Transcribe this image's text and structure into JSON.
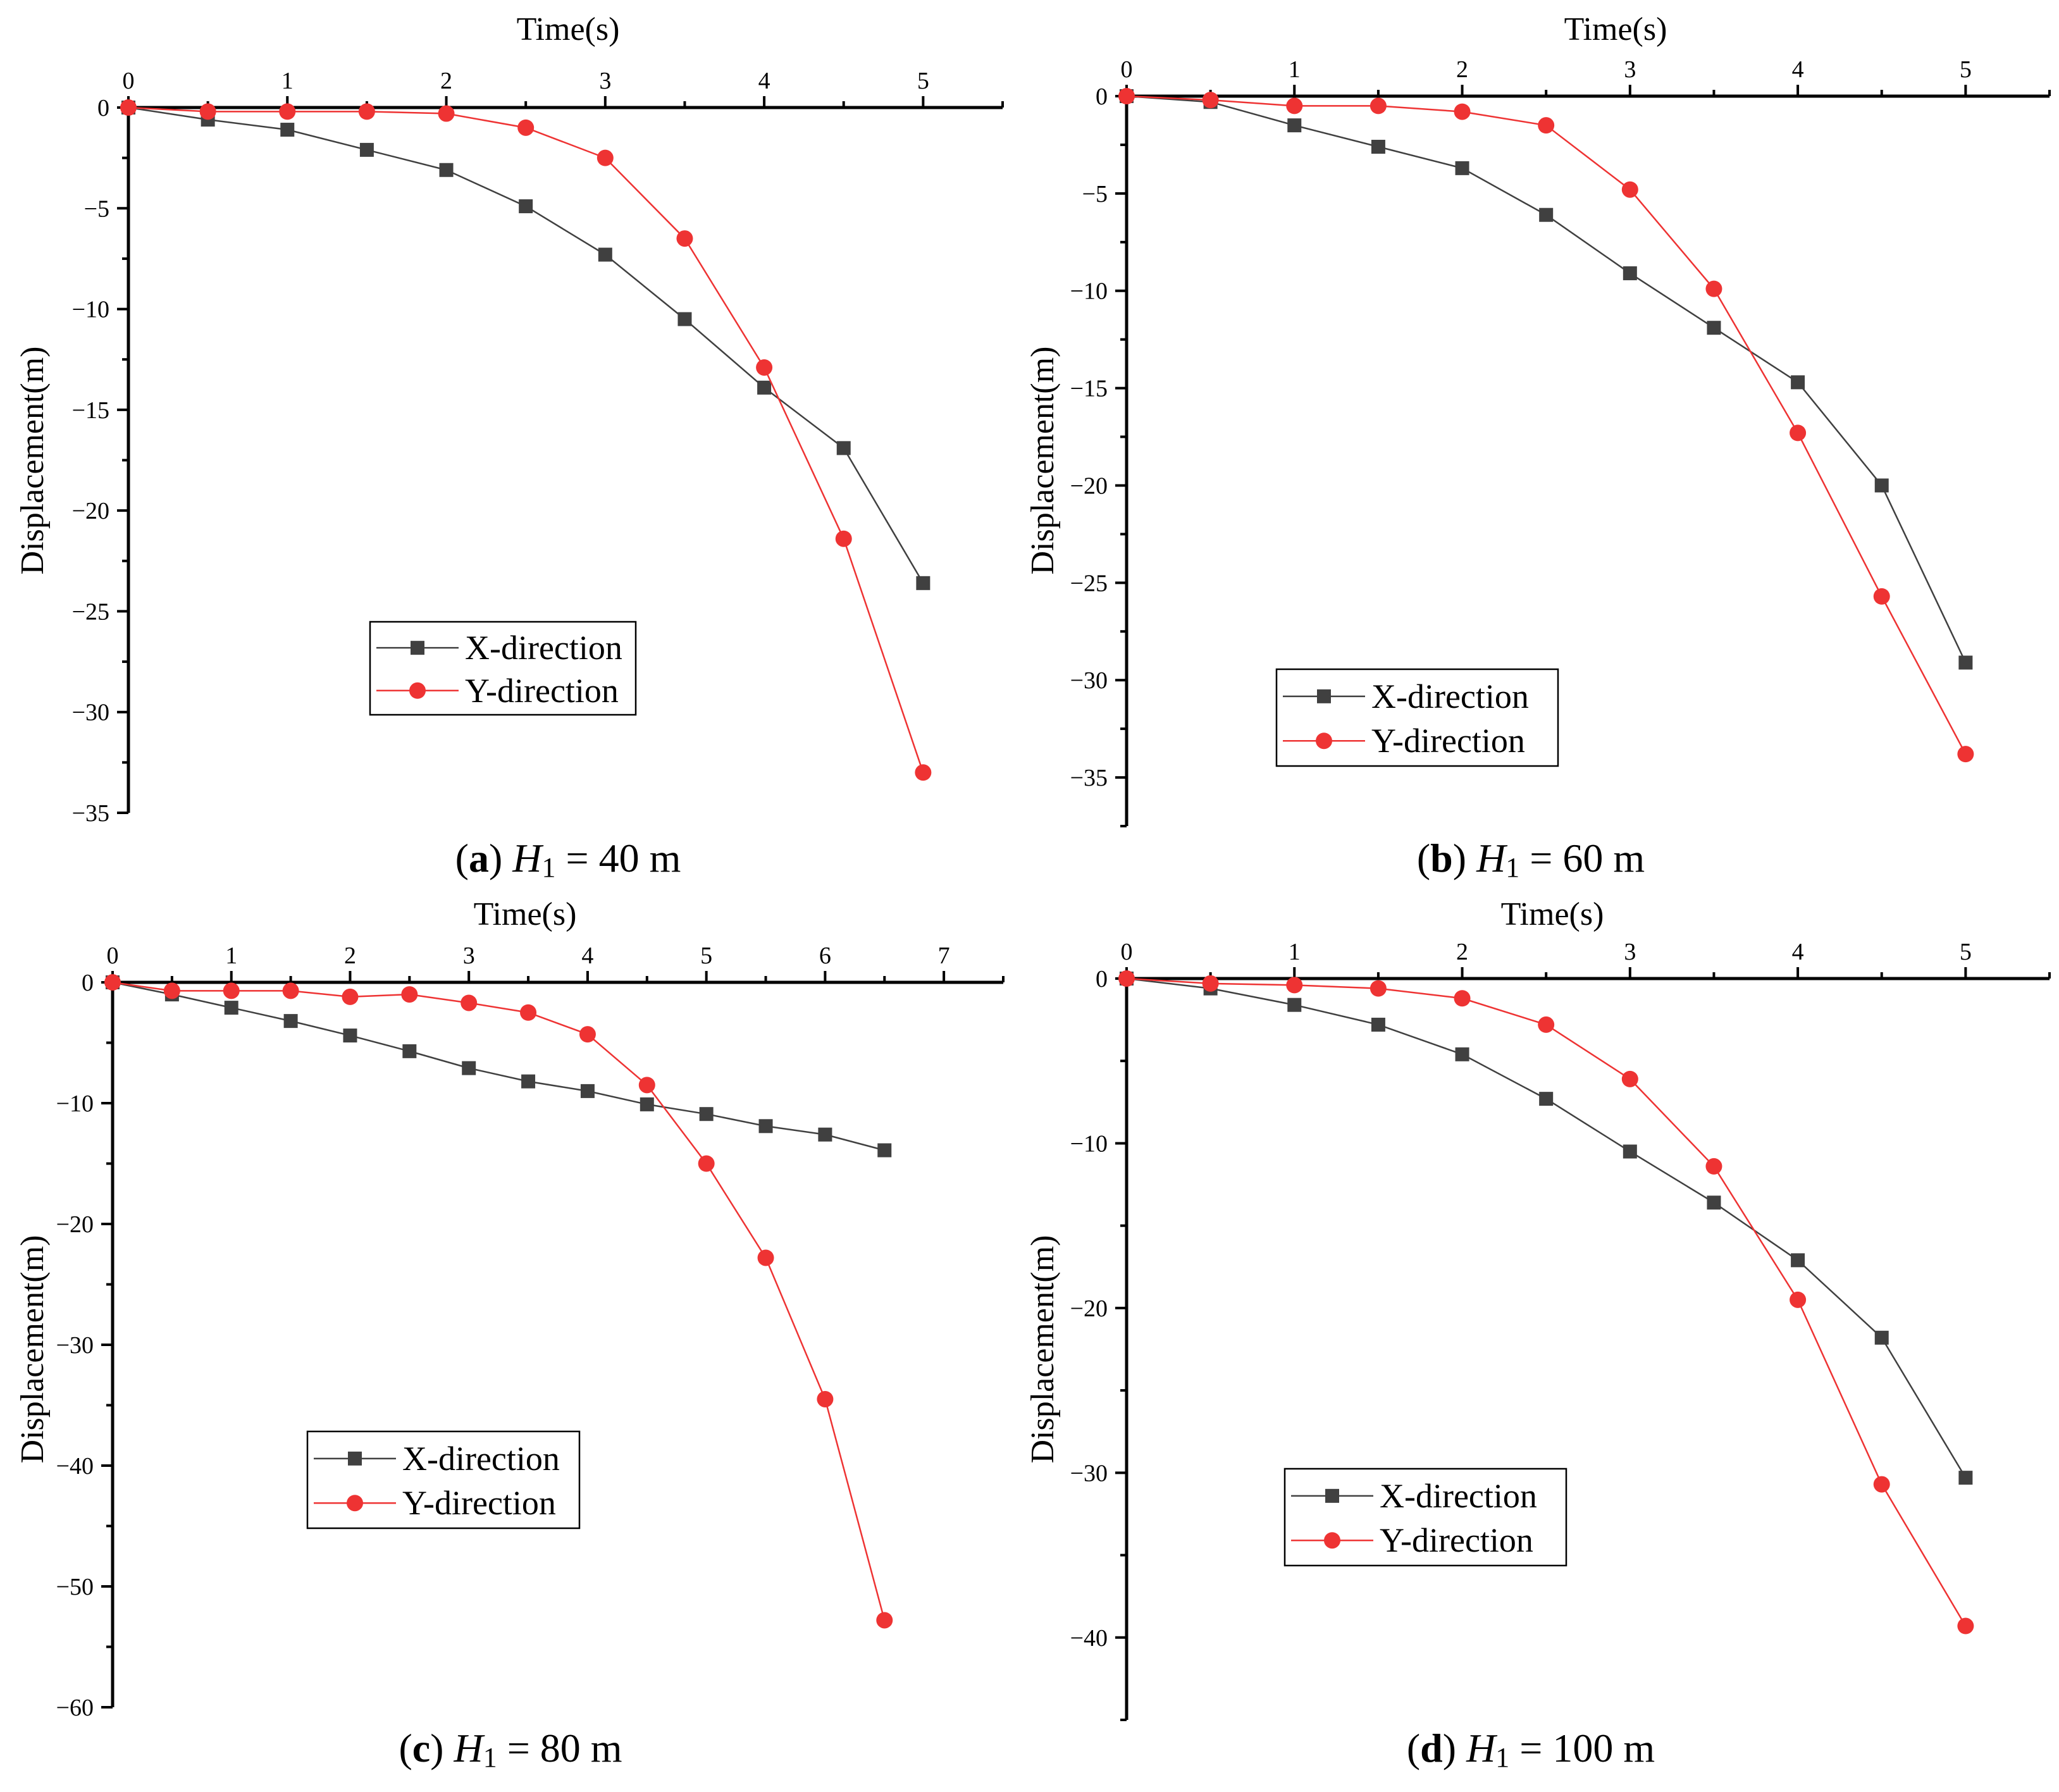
{
  "figure": {
    "background": "#ffffff"
  },
  "legend_items": [
    {
      "label": "X-direction",
      "color": "#404040",
      "marker": "square"
    },
    {
      "label": "Y-direction",
      "color": "#ee3333",
      "marker": "circle"
    }
  ],
  "chart_data": [
    {
      "type": "line",
      "caption": {
        "letter": "a",
        "var": "H",
        "sub": "1",
        "rest": " = 40 m"
      },
      "xlabel": "Time(s)",
      "ylabel": "Displacement(m)",
      "xlim": [
        0,
        5.5
      ],
      "xticks": [
        0,
        1,
        2,
        3,
        4,
        5
      ],
      "ylim": [
        -35,
        0
      ],
      "yticks": [
        0,
        -5,
        -10,
        -15,
        -20,
        -25,
        -30,
        -35
      ],
      "series": [
        {
          "name": "X-direction",
          "x": [
            0,
            0.5,
            1,
            1.5,
            2,
            2.5,
            3,
            3.5,
            4,
            4.5,
            5
          ],
          "y": [
            0,
            -0.6,
            -1.1,
            -2.1,
            -3.1,
            -4.9,
            -7.3,
            -10.5,
            -13.9,
            -16.9,
            -23.6
          ]
        },
        {
          "name": "Y-direction",
          "x": [
            0,
            0.5,
            1,
            1.5,
            2,
            2.5,
            3,
            3.5,
            4,
            4.5,
            5
          ],
          "y": [
            0,
            -0.2,
            -0.2,
            -0.2,
            -0.3,
            -1.0,
            -2.5,
            -6.5,
            -12.9,
            -21.4,
            -33.0
          ]
        }
      ]
    },
    {
      "type": "line",
      "caption": {
        "letter": "b",
        "var": "H",
        "sub": "1",
        "rest": " = 60 m"
      },
      "xlabel": "Time(s)",
      "ylabel": "Displacement(m)",
      "xlim": [
        0,
        5.5
      ],
      "xticks": [
        0,
        1,
        2,
        3,
        4,
        5
      ],
      "ylim": [
        -37.5,
        0
      ],
      "yticks": [
        0,
        -5,
        -10,
        -15,
        -20,
        -25,
        -30,
        -35
      ],
      "series": [
        {
          "name": "X-direction",
          "x": [
            0,
            0.5,
            1,
            1.5,
            2,
            2.5,
            3,
            3.5,
            4,
            4.5,
            5
          ],
          "y": [
            0,
            -0.3,
            -1.5,
            -2.6,
            -3.7,
            -6.1,
            -9.1,
            -11.9,
            -14.7,
            -20.0,
            -29.1
          ]
        },
        {
          "name": "Y-direction",
          "x": [
            0,
            0.5,
            1,
            1.5,
            2,
            2.5,
            3,
            3.5,
            4,
            4.5,
            5
          ],
          "y": [
            0,
            -0.2,
            -0.5,
            -0.5,
            -0.8,
            -1.5,
            -4.8,
            -9.9,
            -17.3,
            -25.7,
            -33.8
          ]
        }
      ]
    },
    {
      "type": "line",
      "caption": {
        "letter": "c",
        "var": "H",
        "sub": "1",
        "rest": " = 80 m"
      },
      "xlabel": "Time(s)",
      "ylabel": "Displacement(m)",
      "xlim": [
        0,
        7.5
      ],
      "xticks": [
        0,
        1,
        2,
        3,
        4,
        5,
        6,
        7
      ],
      "ylim": [
        -60,
        0
      ],
      "yticks": [
        0,
        -10,
        -20,
        -30,
        -40,
        -50,
        -60
      ],
      "series": [
        {
          "name": "X-direction",
          "x": [
            0,
            0.5,
            1,
            1.5,
            2,
            2.5,
            3,
            3.5,
            4,
            4.5,
            5,
            5.5,
            6,
            6.5
          ],
          "y": [
            0,
            -1.0,
            -2.1,
            -3.2,
            -4.4,
            -5.7,
            -7.1,
            -8.2,
            -9.0,
            -10.1,
            -10.9,
            -11.9,
            -12.6,
            -13.9
          ]
        },
        {
          "name": "Y-direction",
          "x": [
            0,
            0.5,
            1,
            1.5,
            2,
            2.5,
            3,
            3.5,
            4,
            4.5,
            5,
            5.5,
            6,
            6.5
          ],
          "y": [
            0,
            -0.7,
            -0.7,
            -0.7,
            -1.2,
            -1.0,
            -1.7,
            -2.5,
            -4.3,
            -8.5,
            -15.0,
            -22.8,
            -34.5,
            -52.8
          ]
        }
      ]
    },
    {
      "type": "line",
      "caption": {
        "letter": "d",
        "var": "H",
        "sub": "1",
        "rest": " = 100 m"
      },
      "xlabel": "Time(s)",
      "ylabel": "Displacement(m)",
      "xlim": [
        0,
        5.5
      ],
      "xticks": [
        0,
        1,
        2,
        3,
        4,
        5
      ],
      "ylim": [
        -45,
        0
      ],
      "yticks": [
        0,
        -10,
        -20,
        -30,
        -40
      ],
      "series": [
        {
          "name": "X-direction",
          "x": [
            0,
            0.5,
            1,
            1.5,
            2,
            2.5,
            3,
            3.5,
            4,
            4.5,
            5
          ],
          "y": [
            0,
            -0.6,
            -1.6,
            -2.8,
            -4.6,
            -7.3,
            -10.5,
            -13.6,
            -17.1,
            -21.8,
            -30.3
          ]
        },
        {
          "name": "Y-direction",
          "x": [
            0,
            0.5,
            1,
            1.5,
            2,
            2.5,
            3,
            3.5,
            4,
            4.5,
            5
          ],
          "y": [
            0,
            -0.3,
            -0.4,
            -0.6,
            -1.2,
            -2.8,
            -6.1,
            -11.4,
            -19.5,
            -30.7,
            -39.3
          ]
        }
      ]
    }
  ]
}
